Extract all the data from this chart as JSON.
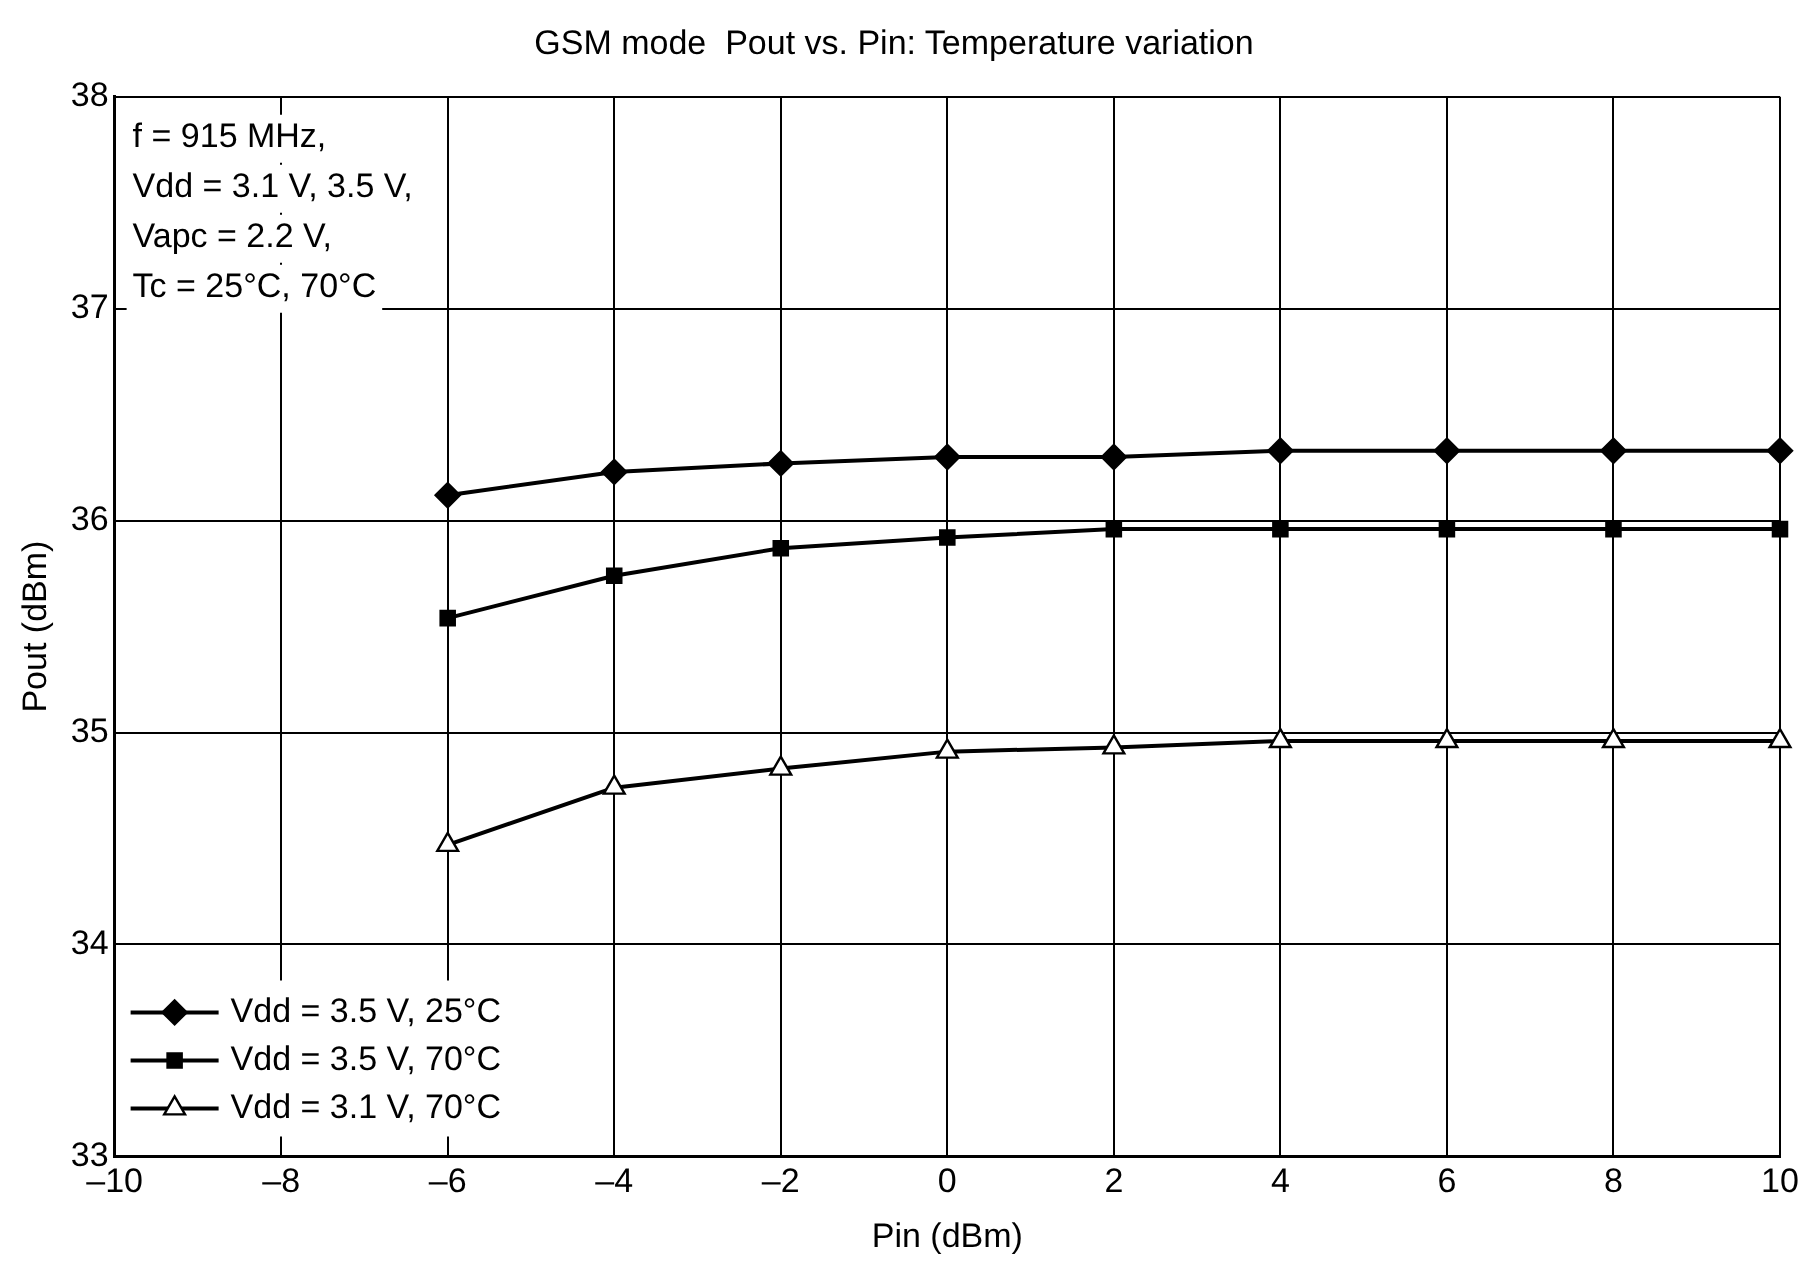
{
  "chart_data": {
    "type": "line",
    "title": "GSM mode  Pout vs. Pin: Temperature variation",
    "xlabel": "Pin (dBm)",
    "ylabel": "Pout (dBm)",
    "annotations": [
      "f = 915 MHz,",
      "Vdd = 3.1 V, 3.5 V,",
      "Vapc = 2.2 V,",
      "Tc = 25°C, 70°C"
    ],
    "x": [
      -6,
      -4,
      -2,
      0,
      2,
      4,
      6,
      8,
      10
    ],
    "series": [
      {
        "name": "Vdd = 3.5 V, 25°C",
        "color": "#000000",
        "marker": "diamond",
        "values": [
          36.12,
          36.23,
          36.27,
          36.3,
          36.3,
          36.33,
          36.33,
          36.33,
          36.33
        ]
      },
      {
        "name": "Vdd = 3.5 V, 70°C",
        "color": "#000000",
        "marker": "square",
        "values": [
          35.54,
          35.74,
          35.87,
          35.92,
          35.96,
          35.96,
          35.96,
          35.96,
          35.96
        ]
      },
      {
        "name": "Vdd = 3.1 V, 70°C",
        "color": "#000000",
        "marker": "triangle",
        "values": [
          34.47,
          34.74,
          34.83,
          34.91,
          34.93,
          34.96,
          34.96,
          34.96,
          34.96
        ]
      }
    ],
    "xlim": [
      -10,
      10
    ],
    "xticks": [
      {
        "value": -10,
        "label": "–10"
      },
      {
        "value": -8,
        "label": "–8"
      },
      {
        "value": -6,
        "label": "–6"
      },
      {
        "value": -4,
        "label": "–4"
      },
      {
        "value": -2,
        "label": "–2"
      },
      0,
      2,
      4,
      6,
      8,
      10
    ],
    "ylim": [
      33,
      38
    ],
    "yticks": [
      33,
      34,
      35,
      36,
      37,
      38
    ],
    "grid": true,
    "legend": "bottom left",
    "line_style": "solid"
  }
}
